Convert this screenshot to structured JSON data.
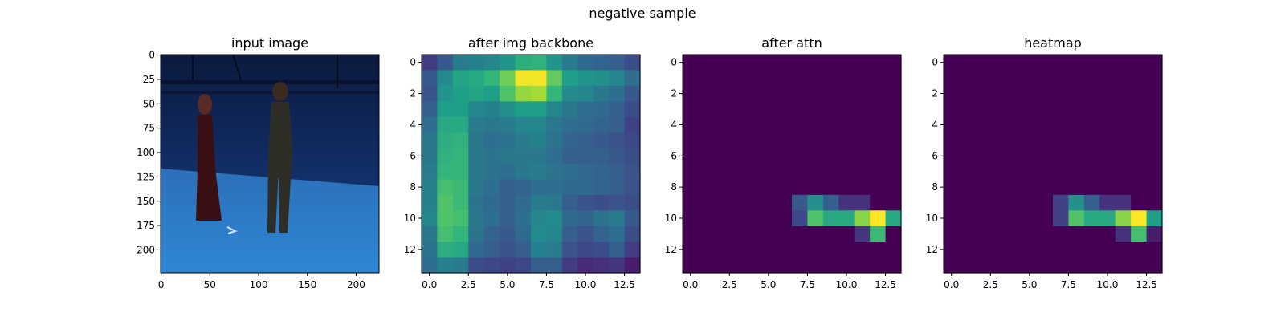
{
  "figure": {
    "suptitle": "negative sample"
  },
  "chart_data": [
    {
      "type": "image",
      "title": "input image",
      "xlim": [
        0,
        223
      ],
      "ylim": [
        223,
        0
      ],
      "xticks": [
        "0",
        "50",
        "100",
        "150",
        "200"
      ],
      "yticks": [
        "0",
        "25",
        "50",
        "75",
        "100",
        "125",
        "150",
        "175",
        "200"
      ],
      "content": "photo of two people standing in a blue-lit studio"
    },
    {
      "type": "heatmap",
      "title": "after img backbone",
      "colormap": "viridis",
      "grid_size": [
        14,
        14
      ],
      "xticks": [
        "0.0",
        "2.5",
        "5.0",
        "7.5",
        "10.0",
        "12.5"
      ],
      "yticks": [
        "0",
        "2",
        "4",
        "6",
        "8",
        "10",
        "12"
      ],
      "values": [
        [
          0.18,
          0.28,
          0.42,
          0.44,
          0.46,
          0.52,
          0.62,
          0.64,
          0.52,
          0.42,
          0.34,
          0.32,
          0.3,
          0.24
        ],
        [
          0.28,
          0.48,
          0.58,
          0.6,
          0.66,
          0.78,
          0.98,
          0.98,
          0.76,
          0.56,
          0.52,
          0.5,
          0.46,
          0.36
        ],
        [
          0.26,
          0.52,
          0.56,
          0.58,
          0.56,
          0.72,
          0.84,
          0.86,
          0.66,
          0.48,
          0.46,
          0.4,
          0.36,
          0.28
        ],
        [
          0.3,
          0.56,
          0.56,
          0.46,
          0.44,
          0.5,
          0.56,
          0.56,
          0.46,
          0.4,
          0.36,
          0.34,
          0.3,
          0.24
        ],
        [
          0.36,
          0.6,
          0.6,
          0.42,
          0.4,
          0.42,
          0.46,
          0.46,
          0.4,
          0.36,
          0.34,
          0.32,
          0.3,
          0.2
        ],
        [
          0.4,
          0.62,
          0.64,
          0.4,
          0.36,
          0.38,
          0.42,
          0.44,
          0.38,
          0.32,
          0.3,
          0.28,
          0.26,
          0.22
        ],
        [
          0.4,
          0.64,
          0.66,
          0.4,
          0.38,
          0.4,
          0.4,
          0.4,
          0.36,
          0.3,
          0.3,
          0.3,
          0.28,
          0.24
        ],
        [
          0.42,
          0.66,
          0.66,
          0.4,
          0.38,
          0.36,
          0.4,
          0.42,
          0.38,
          0.36,
          0.34,
          0.32,
          0.3,
          0.26
        ],
        [
          0.44,
          0.7,
          0.68,
          0.4,
          0.36,
          0.3,
          0.32,
          0.36,
          0.36,
          0.34,
          0.34,
          0.32,
          0.3,
          0.26
        ],
        [
          0.44,
          0.72,
          0.68,
          0.38,
          0.34,
          0.3,
          0.34,
          0.42,
          0.4,
          0.3,
          0.26,
          0.24,
          0.26,
          0.24
        ],
        [
          0.46,
          0.72,
          0.7,
          0.4,
          0.36,
          0.3,
          0.36,
          0.46,
          0.48,
          0.34,
          0.32,
          0.38,
          0.42,
          0.28
        ],
        [
          0.4,
          0.7,
          0.66,
          0.38,
          0.32,
          0.28,
          0.34,
          0.48,
          0.46,
          0.3,
          0.26,
          0.32,
          0.36,
          0.24
        ],
        [
          0.38,
          0.62,
          0.6,
          0.34,
          0.3,
          0.26,
          0.3,
          0.44,
          0.42,
          0.26,
          0.22,
          0.24,
          0.3,
          0.18
        ],
        [
          0.36,
          0.44,
          0.42,
          0.24,
          0.22,
          0.2,
          0.22,
          0.3,
          0.3,
          0.18,
          0.12,
          0.14,
          0.16,
          0.08
        ]
      ]
    },
    {
      "type": "heatmap",
      "title": "after attn",
      "colormap": "viridis",
      "grid_size": [
        14,
        14
      ],
      "xticks": [
        "0.0",
        "2.5",
        "5.0",
        "7.5",
        "10.0",
        "12.5"
      ],
      "yticks": [
        "0",
        "2",
        "4",
        "6",
        "8",
        "10",
        "12"
      ],
      "values": [
        [
          0,
          0,
          0,
          0,
          0,
          0,
          0,
          0,
          0,
          0,
          0,
          0,
          0,
          0
        ],
        [
          0,
          0,
          0,
          0,
          0,
          0,
          0,
          0,
          0,
          0,
          0,
          0,
          0,
          0
        ],
        [
          0,
          0,
          0,
          0,
          0,
          0,
          0,
          0,
          0,
          0,
          0,
          0,
          0,
          0
        ],
        [
          0,
          0,
          0,
          0,
          0,
          0,
          0,
          0,
          0,
          0,
          0,
          0,
          0,
          0
        ],
        [
          0,
          0,
          0,
          0,
          0,
          0,
          0,
          0,
          0,
          0,
          0,
          0,
          0,
          0
        ],
        [
          0,
          0,
          0,
          0,
          0,
          0,
          0,
          0,
          0,
          0,
          0,
          0,
          0,
          0
        ],
        [
          0,
          0,
          0,
          0,
          0,
          0,
          0,
          0,
          0,
          0,
          0,
          0,
          0,
          0
        ],
        [
          0,
          0,
          0,
          0,
          0,
          0,
          0,
          0,
          0,
          0,
          0,
          0,
          0,
          0
        ],
        [
          0,
          0,
          0,
          0,
          0,
          0,
          0,
          0,
          0,
          0,
          0,
          0,
          0,
          0
        ],
        [
          0,
          0,
          0,
          0,
          0,
          0,
          0,
          0.28,
          0.5,
          0.3,
          0.14,
          0.14,
          0,
          0
        ],
        [
          0,
          0,
          0,
          0,
          0,
          0,
          0,
          0.22,
          0.72,
          0.6,
          0.6,
          0.82,
          1.0,
          0.6
        ],
        [
          0,
          0,
          0,
          0,
          0,
          0,
          0,
          0,
          0,
          0,
          0,
          0.16,
          0.68,
          0
        ],
        [
          0,
          0,
          0,
          0,
          0,
          0,
          0,
          0,
          0,
          0,
          0,
          0,
          0,
          0
        ],
        [
          0,
          0,
          0,
          0,
          0,
          0,
          0,
          0,
          0,
          0,
          0,
          0,
          0,
          0
        ]
      ]
    },
    {
      "type": "heatmap",
      "title": "heatmap",
      "colormap": "viridis",
      "grid_size": [
        14,
        14
      ],
      "xticks": [
        "0.0",
        "2.5",
        "5.0",
        "7.5",
        "10.0",
        "12.5"
      ],
      "yticks": [
        "0",
        "2",
        "4",
        "6",
        "8",
        "10",
        "12"
      ],
      "values": [
        [
          0,
          0,
          0,
          0,
          0,
          0,
          0,
          0,
          0,
          0,
          0,
          0,
          0,
          0
        ],
        [
          0,
          0,
          0,
          0,
          0,
          0,
          0,
          0,
          0,
          0,
          0,
          0,
          0,
          0
        ],
        [
          0,
          0,
          0,
          0,
          0,
          0,
          0,
          0,
          0,
          0,
          0,
          0,
          0,
          0
        ],
        [
          0,
          0,
          0,
          0,
          0,
          0,
          0,
          0,
          0,
          0,
          0,
          0,
          0,
          0
        ],
        [
          0,
          0,
          0,
          0,
          0,
          0,
          0,
          0,
          0,
          0,
          0,
          0,
          0,
          0
        ],
        [
          0,
          0,
          0,
          0,
          0,
          0,
          0,
          0,
          0,
          0,
          0,
          0,
          0,
          0
        ],
        [
          0,
          0,
          0,
          0,
          0,
          0,
          0,
          0,
          0,
          0,
          0,
          0,
          0,
          0
        ],
        [
          0,
          0,
          0,
          0,
          0,
          0,
          0,
          0,
          0,
          0,
          0,
          0,
          0,
          0
        ],
        [
          0,
          0,
          0,
          0,
          0,
          0,
          0,
          0,
          0,
          0,
          0,
          0,
          0,
          0
        ],
        [
          0,
          0,
          0,
          0,
          0,
          0,
          0,
          0.2,
          0.5,
          0.3,
          0.14,
          0.14,
          0,
          0
        ],
        [
          0,
          0,
          0,
          0,
          0,
          0,
          0,
          0.2,
          0.72,
          0.6,
          0.6,
          0.82,
          1.0,
          0.56
        ],
        [
          0,
          0,
          0,
          0,
          0,
          0,
          0,
          0,
          0,
          0,
          0,
          0.14,
          0.7,
          0.08
        ],
        [
          0,
          0,
          0,
          0,
          0,
          0,
          0,
          0,
          0,
          0,
          0,
          0,
          0,
          0
        ],
        [
          0,
          0,
          0,
          0,
          0,
          0,
          0,
          0,
          0,
          0,
          0,
          0,
          0,
          0
        ]
      ]
    }
  ]
}
